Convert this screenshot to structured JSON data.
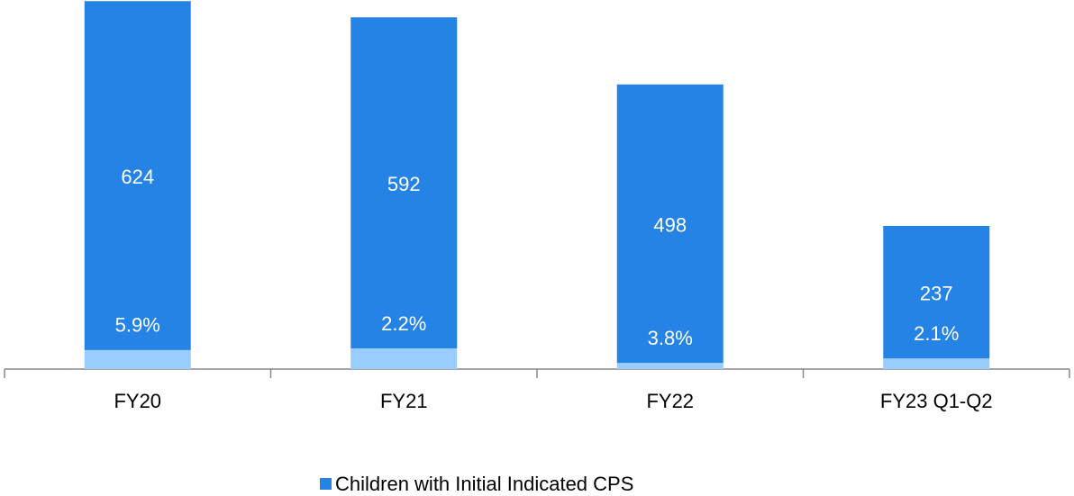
{
  "chart_data": {
    "type": "stacked_bar",
    "categories": [
      "FY20",
      "FY21",
      "FY22",
      "FY23 Q1-Q2"
    ],
    "series": [
      {
        "color": "#99ccff",
        "values": [
          34,
          37,
          11,
          19
        ]
      },
      {
        "name": "Children with Initial Indicated CPS",
        "color": "#2583e5",
        "values": [
          624,
          592,
          498,
          237
        ]
      }
    ],
    "annotations": [
      "5.9%",
      "2.2%",
      "3.8%",
      "2.1%"
    ],
    "ylim": [
      0,
      660
    ],
    "legend": "bottom"
  }
}
